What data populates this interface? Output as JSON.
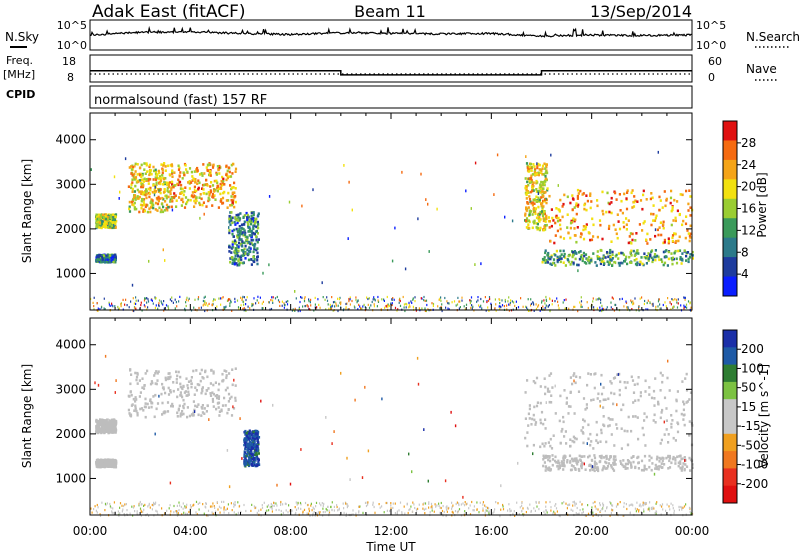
{
  "header": {
    "station": "Adak East (fitACF)",
    "beam": "Beam 11",
    "date": "13/Sep/2014"
  },
  "strips": {
    "nsky_label": "N.Sky",
    "nsky_ticks": [
      "10^5",
      "10^0"
    ],
    "nsearch_label": "N.Search",
    "freq_label": "Freq.",
    "freq_unit": "[MHz]",
    "freq_ticks": [
      "18",
      "8"
    ],
    "nave_label": "Nave",
    "nave_ticks": [
      "60",
      "0"
    ],
    "cpid_label": "CPID",
    "cpid_text": "normalsound (fast) 157 RF"
  },
  "axes": {
    "xlabel": "Time UT",
    "xticks": [
      "00:00",
      "04:00",
      "08:00",
      "12:00",
      "16:00",
      "20:00",
      "00:00"
    ],
    "ylabel": "Slant Range [km]",
    "yticks": [
      "1000",
      "2000",
      "3000",
      "4000"
    ],
    "xlim_hours": [
      0,
      24
    ],
    "ylim_km": [
      180,
      4600
    ]
  },
  "colors": {
    "power": [
      "#0a1eff",
      "#1e3c9e",
      "#2c7a8a",
      "#3a9a5a",
      "#9acd32",
      "#f2e10f",
      "#f5a418",
      "#f56a10",
      "#e01010"
    ],
    "velocity": [
      "#1b2fa8",
      "#1e5aa6",
      "#2e7d32",
      "#7cc242",
      "#c8c8c8",
      "#c8c8c8",
      "#f0a020",
      "#f07820",
      "#e83020",
      "#e01010"
    ],
    "ground_scatter": "#bdbdbd"
  },
  "chart_data": [
    {
      "type": "heatmap",
      "title": "Power",
      "colorbar_label": "Power [dB]",
      "colorbar_ticks": [
        "4",
        "8",
        "12",
        "16",
        "20",
        "24",
        "28"
      ],
      "x_units": "hours UT",
      "y_units": "km",
      "echo_regions": [
        {
          "t0": 0.2,
          "t1": 1.0,
          "r0": 2050,
          "r1": 2350,
          "value": 16
        },
        {
          "t0": 0.2,
          "t1": 1.0,
          "r0": 1280,
          "r1": 1450,
          "value": 9
        },
        {
          "t0": 1.5,
          "t1": 3.2,
          "r0": 2400,
          "r1": 3500,
          "value": 20
        },
        {
          "t0": 3.2,
          "t1": 5.8,
          "r0": 2500,
          "r1": 3500,
          "value": 22
        },
        {
          "t0": 5.5,
          "t1": 6.7,
          "r0": 1200,
          "r1": 2400,
          "value": 10
        },
        {
          "t0": 17.3,
          "t1": 18.2,
          "r0": 2000,
          "r1": 3500,
          "value": 20
        },
        {
          "t0": 18.2,
          "t1": 24.0,
          "r0": 1700,
          "r1": 2900,
          "value": 24
        },
        {
          "t0": 18.0,
          "t1": 24.0,
          "r0": 1200,
          "r1": 1550,
          "value": 12
        }
      ]
    },
    {
      "type": "heatmap",
      "title": "Velocity",
      "colorbar_label": "Velocity [m s^-1]",
      "colorbar_ticks": [
        "200",
        "100",
        "50",
        "15",
        "-15",
        "-50",
        "-100",
        "-200"
      ],
      "x_units": "hours UT",
      "y_units": "km",
      "echo_regions": [
        {
          "t0": 0.2,
          "t1": 1.0,
          "r0": 2050,
          "r1": 2350,
          "value": 0
        },
        {
          "t0": 0.2,
          "t1": 1.0,
          "r0": 1280,
          "r1": 1450,
          "value": 0
        },
        {
          "t0": 1.5,
          "t1": 5.8,
          "r0": 2400,
          "r1": 3500,
          "value": 0
        },
        {
          "t0": 6.1,
          "t1": 6.7,
          "r0": 1300,
          "r1": 2100,
          "value": 150
        },
        {
          "t0": 17.3,
          "t1": 24.0,
          "r0": 1700,
          "r1": 3400,
          "value": 0
        },
        {
          "t0": 18.0,
          "t1": 24.0,
          "r0": 1200,
          "r1": 1550,
          "value": 0
        }
      ]
    },
    {
      "type": "line",
      "title": "N.Sky",
      "x": [
        0,
        2,
        4,
        6,
        8,
        10,
        12,
        14,
        16,
        18,
        20,
        22,
        24
      ],
      "values": [
        2.5,
        3.0,
        3.1,
        2.8,
        2.6,
        2.9,
        2.8,
        2.7,
        2.8,
        2.3,
        2.5,
        2.4,
        2.5
      ]
    },
    {
      "type": "line",
      "title": "Freq.",
      "x": [
        0,
        10,
        10,
        18,
        18,
        24
      ],
      "values": [
        13.5,
        13.5,
        11,
        11,
        13.5,
        13.5
      ]
    }
  ]
}
